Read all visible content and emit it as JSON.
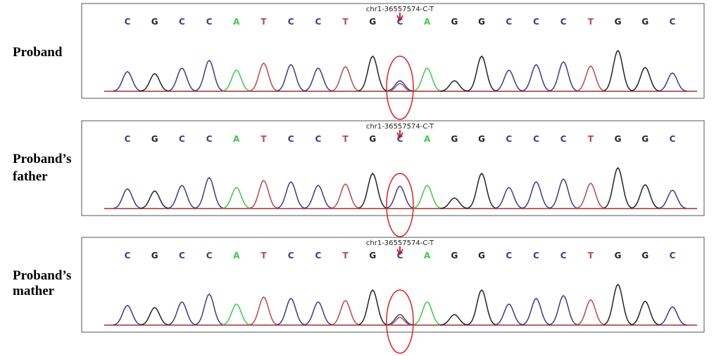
{
  "panels": [
    {
      "label": [
        "Proband"
      ],
      "variant": "chr1-36557574-C-T",
      "bases": [
        "C",
        "G",
        "C",
        "C",
        "A",
        "T",
        "C",
        "C",
        "T",
        "G",
        "C",
        "A",
        "G",
        "G",
        "C",
        "C",
        "C",
        "T",
        "G",
        "G",
        "C"
      ]
    },
    {
      "label": [
        "Proband’s",
        "father"
      ],
      "variant": "chr1-36557574-C-T",
      "bases": [
        "C",
        "G",
        "C",
        "C",
        "A",
        "T",
        "C",
        "C",
        "T",
        "G",
        "C",
        "A",
        "G",
        "G",
        "C",
        "C",
        "C",
        "T",
        "G",
        "G",
        "C"
      ]
    },
    {
      "label": [
        "Proband’s",
        "mather"
      ],
      "variant": "chr1-36557574-C-T",
      "bases": [
        "C",
        "G",
        "C",
        "C",
        "A",
        "T",
        "C",
        "C",
        "T",
        "G",
        "C",
        "A",
        "G",
        "G",
        "C",
        "C",
        "C",
        "T",
        "G",
        "G",
        "C"
      ]
    }
  ]
}
